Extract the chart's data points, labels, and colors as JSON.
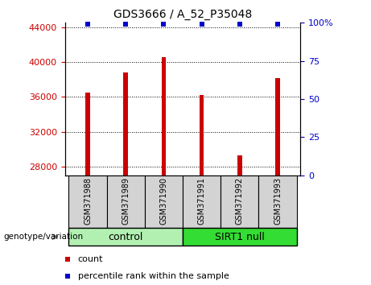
{
  "title": "GDS3666 / A_52_P35048",
  "samples": [
    "GSM371988",
    "GSM371989",
    "GSM371990",
    "GSM371991",
    "GSM371992",
    "GSM371993"
  ],
  "counts": [
    36500,
    38800,
    40600,
    36200,
    29300,
    38200
  ],
  "percentile_ranks": [
    99,
    99,
    99,
    99,
    99,
    99
  ],
  "y_min": 27000,
  "y_max": 44500,
  "y_ticks_left": [
    28000,
    32000,
    36000,
    40000,
    44000
  ],
  "y_ticks_right": [
    0,
    25,
    50,
    75,
    100
  ],
  "bar_color": "#cc0000",
  "dot_color": "#0000cc",
  "groups": [
    {
      "label": "control",
      "indices": [
        0,
        1,
        2
      ],
      "color": "#b2f0b2"
    },
    {
      "label": "SIRT1 null",
      "indices": [
        3,
        4,
        5
      ],
      "color": "#33dd33"
    }
  ],
  "genotype_label": "genotype/variation",
  "legend_count_label": "count",
  "legend_pct_label": "percentile rank within the sample",
  "tick_label_color_left": "#cc0000",
  "tick_label_color_right": "#0000cc",
  "bg_color_ticks": "#d3d3d3",
  "bar_width": 0.12
}
